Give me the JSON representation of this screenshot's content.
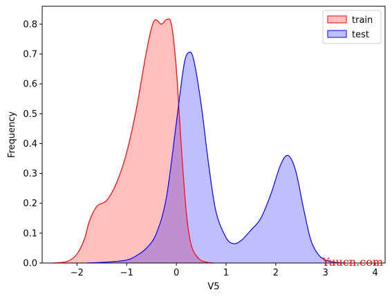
{
  "chart_data": {
    "type": "area",
    "title": "",
    "xlabel": "V5",
    "ylabel": "Frequency",
    "xlim": [
      -2.7,
      4.2
    ],
    "ylim": [
      0,
      0.86
    ],
    "x_ticks": [
      -2,
      -1,
      0,
      1,
      2,
      3,
      4
    ],
    "y_ticks": [
      0.0,
      0.1,
      0.2,
      0.3,
      0.4,
      0.5,
      0.6,
      0.7,
      0.8
    ],
    "legend_position": "top-right",
    "grid": false,
    "series": [
      {
        "name": "train",
        "line_color": "#ff0000",
        "fill_color": "#ff0000",
        "fill_opacity": 0.25,
        "points": [
          [
            -2.5,
            0.0
          ],
          [
            -2.2,
            0.005
          ],
          [
            -2.0,
            0.03
          ],
          [
            -1.85,
            0.08
          ],
          [
            -1.75,
            0.14
          ],
          [
            -1.6,
            0.19
          ],
          [
            -1.4,
            0.21
          ],
          [
            -1.2,
            0.27
          ],
          [
            -1.0,
            0.37
          ],
          [
            -0.8,
            0.52
          ],
          [
            -0.6,
            0.71
          ],
          [
            -0.45,
            0.81
          ],
          [
            -0.3,
            0.8
          ],
          [
            -0.2,
            0.815
          ],
          [
            -0.1,
            0.8
          ],
          [
            0.0,
            0.65
          ],
          [
            0.1,
            0.39
          ],
          [
            0.2,
            0.17
          ],
          [
            0.3,
            0.06
          ],
          [
            0.45,
            0.015
          ],
          [
            0.6,
            0.003
          ],
          [
            0.75,
            0.0
          ]
        ]
      },
      {
        "name": "test",
        "line_color": "#0000ff",
        "fill_color": "#0000ff",
        "fill_opacity": 0.25,
        "points": [
          [
            -1.8,
            0.0
          ],
          [
            -1.4,
            0.003
          ],
          [
            -1.0,
            0.01
          ],
          [
            -0.8,
            0.025
          ],
          [
            -0.6,
            0.05
          ],
          [
            -0.4,
            0.1
          ],
          [
            -0.2,
            0.22
          ],
          [
            0.0,
            0.47
          ],
          [
            0.15,
            0.66
          ],
          [
            0.25,
            0.705
          ],
          [
            0.35,
            0.68
          ],
          [
            0.5,
            0.53
          ],
          [
            0.65,
            0.33
          ],
          [
            0.8,
            0.17
          ],
          [
            1.0,
            0.085
          ],
          [
            1.15,
            0.065
          ],
          [
            1.3,
            0.075
          ],
          [
            1.5,
            0.11
          ],
          [
            1.7,
            0.15
          ],
          [
            1.9,
            0.23
          ],
          [
            2.1,
            0.33
          ],
          [
            2.25,
            0.36
          ],
          [
            2.4,
            0.31
          ],
          [
            2.55,
            0.19
          ],
          [
            2.7,
            0.08
          ],
          [
            2.85,
            0.03
          ],
          [
            3.0,
            0.01
          ],
          [
            3.2,
            0.002
          ],
          [
            3.4,
            0.0
          ]
        ]
      }
    ]
  },
  "watermark": {
    "text": "Yuucn.com",
    "color": "#ff0000"
  }
}
